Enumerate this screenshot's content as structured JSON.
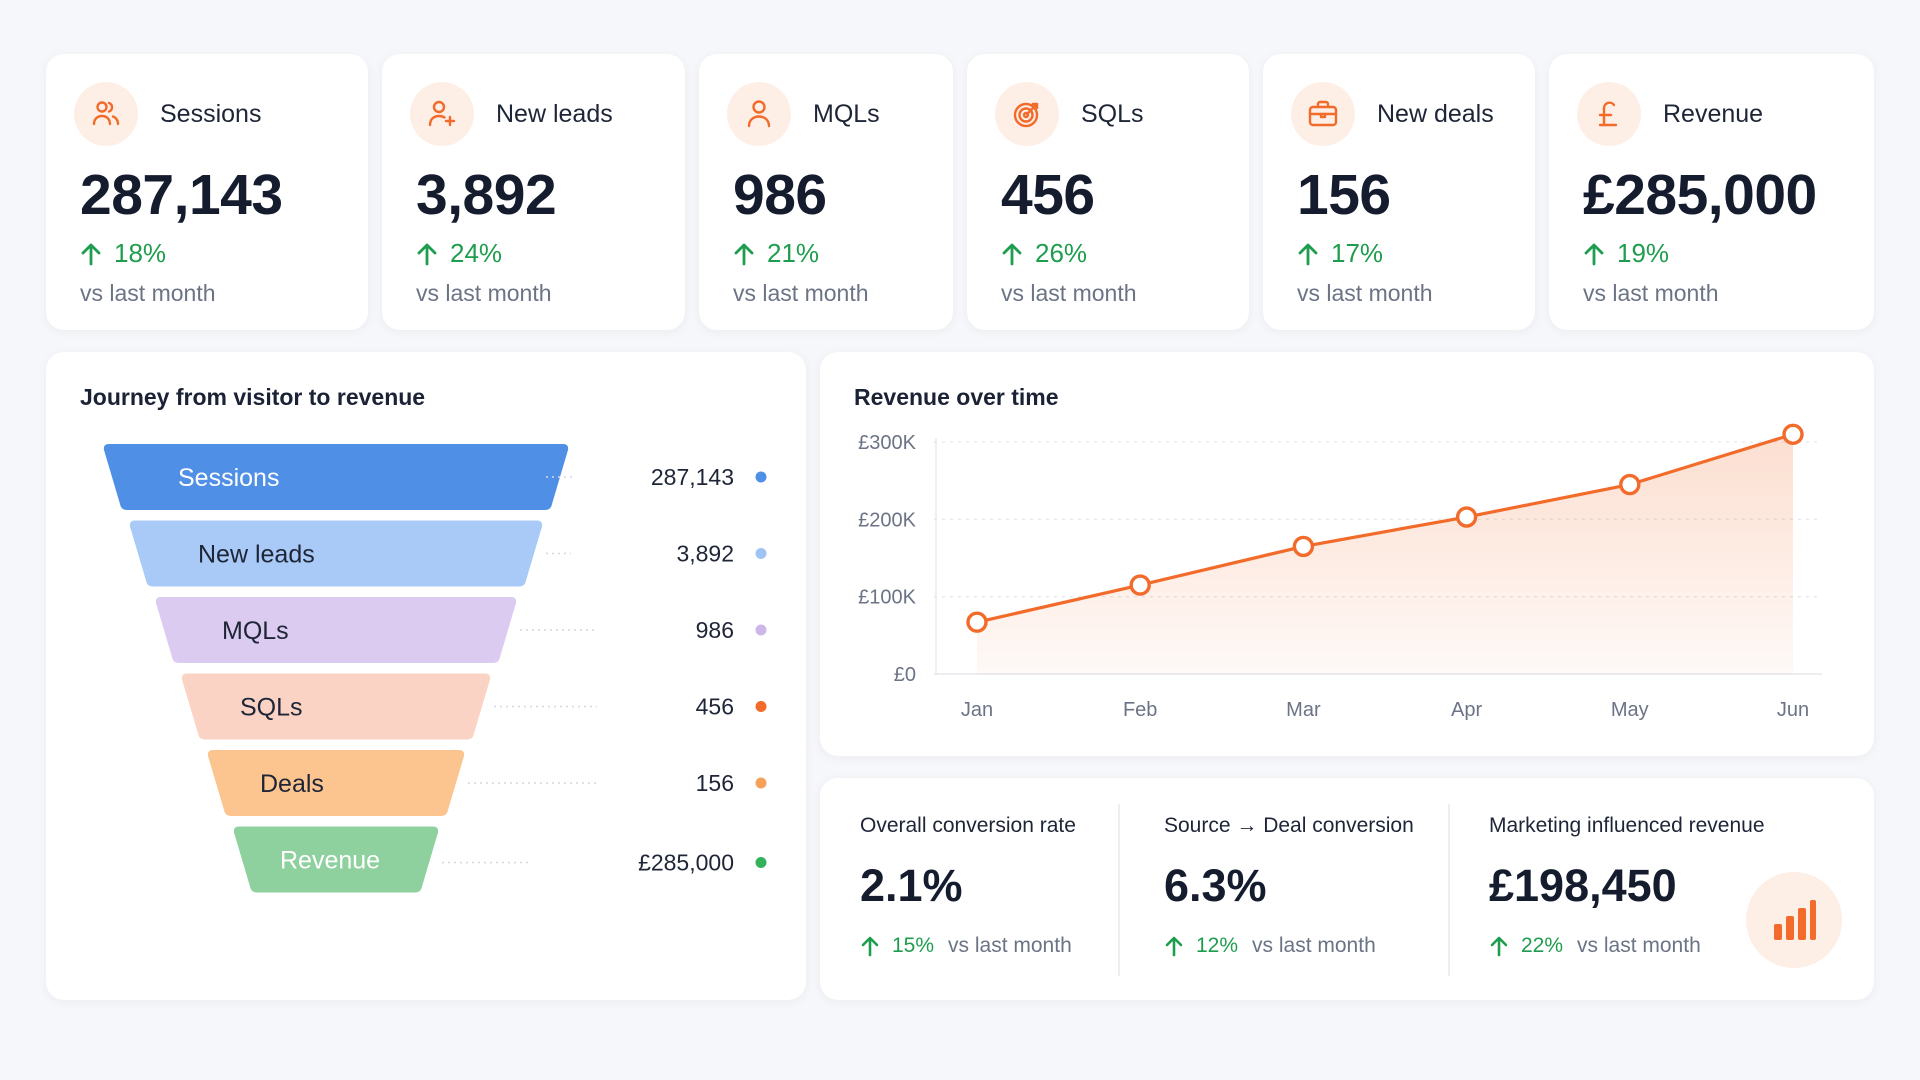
{
  "kpis": [
    {
      "label": "Sessions",
      "value": "287,143",
      "change": "18%",
      "sub": "vs last month",
      "icon": "users-icon"
    },
    {
      "label": "New leads",
      "value": "3,892",
      "change": "24%",
      "sub": "vs last month",
      "icon": "user-plus-icon"
    },
    {
      "label": "MQLs",
      "value": "986",
      "change": "21%",
      "sub": "vs last month",
      "icon": "user-icon"
    },
    {
      "label": "SQLs",
      "value": "456",
      "change": "26%",
      "sub": "vs last month",
      "icon": "target-icon"
    },
    {
      "label": "New deals",
      "value": "156",
      "change": "17%",
      "sub": "vs last month",
      "icon": "briefcase-icon"
    },
    {
      "label": "Revenue",
      "value": "£285,000",
      "change": "19%",
      "sub": "vs last month",
      "icon": "pound-icon"
    }
  ],
  "funnel": {
    "title": "Journey from visitor to revenue",
    "stages": [
      {
        "label": "Sessions",
        "value": "287,143",
        "color": "#4f8fe6",
        "dot": "#4f8fe6",
        "text_color": "#ffffff"
      },
      {
        "label": "New leads",
        "value": "3,892",
        "color": "#a9c9f7",
        "dot": "#9fc3f4",
        "text_color": "#1e2536"
      },
      {
        "label": "MQLs",
        "value": "986",
        "color": "#dccbf0",
        "dot": "#cdb7ea",
        "text_color": "#1e2536"
      },
      {
        "label": "SQLs",
        "value": "456",
        "color": "#fbd3c4",
        "dot": "#f26b2a",
        "text_color": "#1e2536"
      },
      {
        "label": "Deals",
        "value": "156",
        "color": "#fcc58f",
        "dot": "#f6a05a",
        "text_color": "#1e2536"
      },
      {
        "label": "Revenue",
        "value": "£285,000",
        "color": "#8fd19e",
        "dot": "#34b25b",
        "text_color": "#ffffff"
      }
    ]
  },
  "revenue_chart": {
    "title": "Revenue over time"
  },
  "chart_data": {
    "type": "area",
    "title": "Revenue over time",
    "categories": [
      "Jan",
      "Feb",
      "Mar",
      "Apr",
      "May",
      "Jun"
    ],
    "values": [
      67000,
      115000,
      165000,
      203000,
      245000,
      310000
    ],
    "y_ticks": [
      "£0",
      "£100K",
      "£200K",
      "£300K"
    ],
    "ylim": [
      0,
      300000
    ],
    "grid": true,
    "color": "#f26b2a"
  },
  "stats": [
    {
      "label": "Overall conversion rate",
      "value": "2.1%",
      "change": "15%",
      "sub": "vs last month"
    },
    {
      "label": "Source → Deal conversion",
      "value": "6.3%",
      "change": "12%",
      "sub": "vs last month"
    },
    {
      "label": "Marketing influenced revenue",
      "value": "£198,450",
      "change": "22%",
      "sub": "vs last month"
    }
  ],
  "colors": {
    "accent": "#f26b2a",
    "positive": "#1f9d4e",
    "icon_bg": "#fdeee6"
  }
}
